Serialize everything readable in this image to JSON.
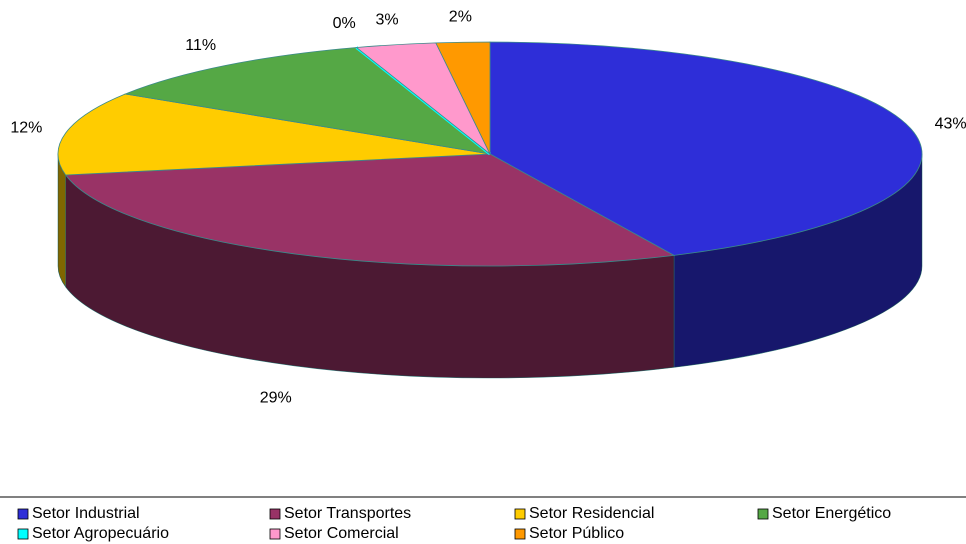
{
  "chart_data": {
    "type": "pie",
    "categories": [
      "Setor Industrial",
      "Setor Transportes",
      "Setor Residencial",
      "Setor Energético",
      "Setor Agropecuário",
      "Setor Comercial",
      "Setor Público"
    ],
    "values": [
      43,
      29,
      12,
      11,
      0,
      3,
      2
    ],
    "value_labels": [
      "43%",
      "29%",
      "12%",
      "11%",
      "0%",
      "3%",
      "2%"
    ],
    "colors": [
      "#2e2ed8",
      "#993366",
      "#ffcc00",
      "#55a845",
      "#00ffff",
      "#ff99cc",
      "#ff9900"
    ],
    "legend": "bottom"
  }
}
